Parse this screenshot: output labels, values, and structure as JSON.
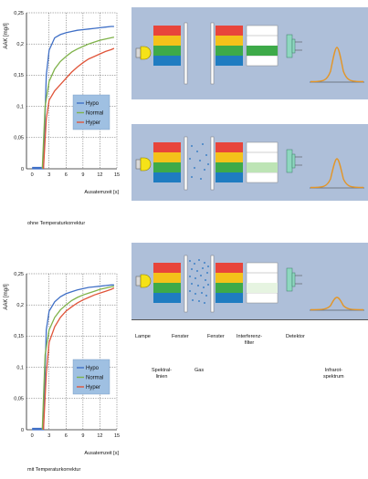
{
  "colors": {
    "panel_bg": "#aebfd9",
    "red": "#e8453b",
    "yellow": "#f4c21a",
    "green": "#3daa49",
    "blue": "#1f7cc1",
    "light_green": "#bde4b5",
    "curve": "#e39526",
    "lamp": "#f5e218",
    "detector": "#8ed7bf"
  },
  "chart_data": [
    {
      "type": "line",
      "ylabel": "AAK [mg/l]",
      "xlabel": "Ausatemzeit [s]",
      "caption": "ohne Temperaturkorrektur",
      "ylim": [
        0,
        0.25
      ],
      "xlim": [
        -1,
        15
      ],
      "xticks": [
        0,
        3,
        6,
        9,
        12,
        15
      ],
      "yticks": [
        0,
        0.05,
        0.1,
        0.15,
        0.2,
        0.25
      ],
      "ytick_labels": [
        "0",
        "0,05",
        "0,1",
        "0,15",
        "0,2",
        "0,25"
      ],
      "legend": "center-right",
      "grid": true,
      "series": [
        {
          "name": "Hypo",
          "color": "#3f6fc6",
          "x": [
            0,
            1,
            1.5,
            2,
            2.5,
            3,
            4,
            5,
            6,
            7,
            8,
            9,
            10,
            11,
            12,
            13,
            14,
            14.5
          ],
          "y": [
            0,
            0,
            0,
            0,
            0.15,
            0.19,
            0.21,
            0.215,
            0.218,
            0.22,
            0.222,
            0.223,
            0.224,
            0.225,
            0.226,
            0.227,
            0.228,
            0.228
          ]
        },
        {
          "name": "Normal",
          "color": "#7fb24a",
          "x": [
            1.8,
            2.3,
            3,
            4,
            5,
            6,
            7,
            8,
            9,
            10,
            11,
            12,
            13,
            14,
            14.5
          ],
          "y": [
            0,
            0.1,
            0.14,
            0.16,
            0.172,
            0.18,
            0.187,
            0.192,
            0.196,
            0.2,
            0.203,
            0.206,
            0.208,
            0.21,
            0.211
          ]
        },
        {
          "name": "Hyper",
          "color": "#e0553a",
          "x": [
            2,
            2.5,
            3,
            4,
            5,
            6,
            7,
            8,
            9,
            10,
            11,
            12,
            13,
            14,
            14.5
          ],
          "y": [
            0,
            0.08,
            0.11,
            0.125,
            0.135,
            0.145,
            0.155,
            0.163,
            0.17,
            0.176,
            0.18,
            0.184,
            0.188,
            0.191,
            0.193
          ]
        }
      ]
    },
    {
      "type": "line",
      "ylabel": "AAK [mg/l]",
      "xlabel": "Ausatemzeit [s]",
      "caption": "mit Temperaturkorrektur",
      "ylim": [
        0,
        0.25
      ],
      "xlim": [
        -1,
        15
      ],
      "xticks": [
        0,
        3,
        6,
        9,
        12,
        15
      ],
      "yticks": [
        0,
        0.05,
        0.1,
        0.15,
        0.2,
        0.25
      ],
      "ytick_labels": [
        "0",
        "0,05",
        "0,1",
        "0,15",
        "0,2",
        "0,25"
      ],
      "legend": "bottom-right",
      "grid": true,
      "series": [
        {
          "name": "Hypo",
          "color": "#3f6fc6",
          "x": [
            0,
            1,
            1.5,
            2,
            2.5,
            3,
            4,
            5,
            6,
            7,
            8,
            9,
            10,
            11,
            12,
            13,
            14,
            14.5
          ],
          "y": [
            0,
            0,
            0,
            0,
            0.16,
            0.19,
            0.205,
            0.213,
            0.218,
            0.221,
            0.224,
            0.226,
            0.228,
            0.229,
            0.23,
            0.231,
            0.232,
            0.232
          ]
        },
        {
          "name": "Normal",
          "color": "#7fb24a",
          "x": [
            1.8,
            2.3,
            3,
            4,
            5,
            6,
            7,
            8,
            9,
            10,
            11,
            12,
            13,
            14,
            14.5
          ],
          "y": [
            0,
            0.12,
            0.16,
            0.18,
            0.192,
            0.2,
            0.207,
            0.212,
            0.216,
            0.219,
            0.222,
            0.225,
            0.227,
            0.229,
            0.23
          ]
        },
        {
          "name": "Hyper",
          "color": "#e0553a",
          "x": [
            2,
            2.5,
            3,
            4,
            5,
            6,
            7,
            8,
            9,
            10,
            11,
            12,
            13,
            14,
            14.5
          ],
          "y": [
            0,
            0.09,
            0.14,
            0.165,
            0.18,
            0.19,
            0.197,
            0.203,
            0.208,
            0.212,
            0.216,
            0.219,
            0.222,
            0.225,
            0.227
          ]
        }
      ]
    }
  ],
  "diagram": {
    "labels_row1": {
      "lampe": "Lampe",
      "fenster_1": "Fenster",
      "fenster_2": "Fenster",
      "interferenz": "Interferenz-\nfilter",
      "detektor": "Detektor"
    },
    "labels_row2": {
      "spektrallinien": "Spektral-\nlinien",
      "gas": "Gas",
      "infrarotspektrum": "Infrarot-\nspektrum"
    }
  }
}
